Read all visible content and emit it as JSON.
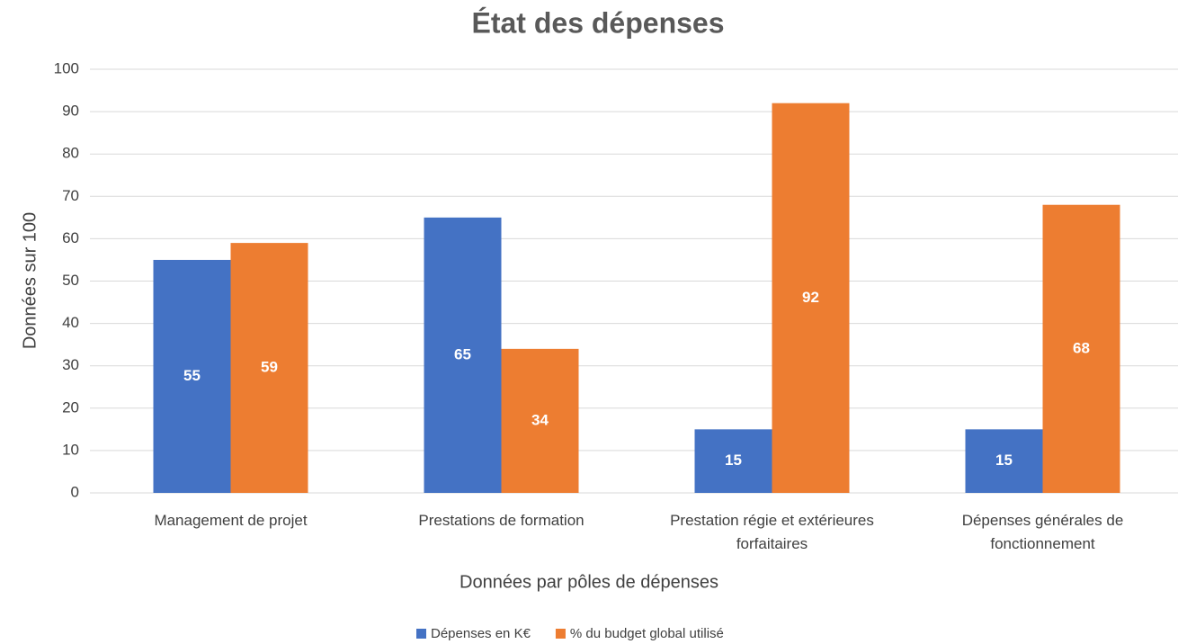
{
  "chart_data": {
    "type": "bar",
    "title": "État des dépenses",
    "x_label": "Données par pôles de dépenses",
    "y_label": "Données sur 100",
    "categories": [
      "Management de projet",
      "Prestations de formation",
      "Prestation régie et extérieures forfaitaires",
      "Dépenses générales de fonctionnement"
    ],
    "series": [
      {
        "name": "Dépenses en K€",
        "color": "#4472c4",
        "values": [
          55,
          65,
          15,
          15
        ]
      },
      {
        "name": "% du budget global utilisé",
        "color": "#ed7d31",
        "values": [
          59,
          34,
          92,
          68
        ]
      }
    ],
    "ylim": [
      0,
      100
    ],
    "yticks": [
      0,
      10,
      20,
      30,
      40,
      50,
      60,
      70,
      80,
      90,
      100
    ],
    "grid": true,
    "legend": "bottom"
  }
}
